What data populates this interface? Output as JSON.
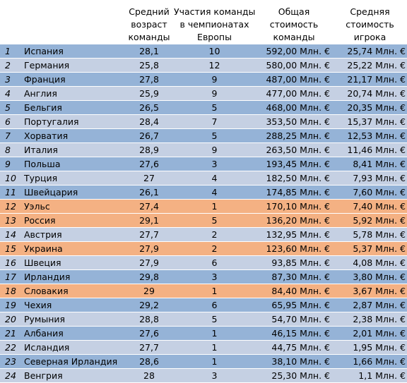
{
  "header": {
    "num": "",
    "country": "",
    "age": [
      "Средний",
      "возраст",
      "команды"
    ],
    "participation": [
      "Участия команды",
      "в чемпионатах",
      "Европы"
    ],
    "total_value": [
      "Общая",
      "стоимость",
      "команды"
    ],
    "avg_value": [
      "Средняя",
      "стоимость",
      "игрока"
    ]
  },
  "colors": {
    "blue": "#95b3d7",
    "light": "#c5d0e3",
    "orange": "#f4b183"
  },
  "rows": [
    {
      "num": "1",
      "country": "Испания",
      "age": "28,1",
      "part": "10",
      "total": "592,00 Млн. €",
      "avg": "25,74 Млн. €",
      "color": "blue"
    },
    {
      "num": "2",
      "country": "Германия",
      "age": "25,8",
      "part": "12",
      "total": "580,00 Млн. €",
      "avg": "25,22 Млн. €",
      "color": "light"
    },
    {
      "num": "3",
      "country": "Франция",
      "age": "27,8",
      "part": "9",
      "total": "487,00 Млн. €",
      "avg": "21,17 Млн. €",
      "color": "blue"
    },
    {
      "num": "4",
      "country": "Англия",
      "age": "25,9",
      "part": "9",
      "total": "477,00 Млн. €",
      "avg": "20,74 Млн. €",
      "color": "light"
    },
    {
      "num": "5",
      "country": "Бельгия",
      "age": "26,5",
      "part": "5",
      "total": "468,00 Млн. €",
      "avg": "20,35 Млн. €",
      "color": "blue"
    },
    {
      "num": "6",
      "country": "Португалия",
      "age": "28,4",
      "part": "7",
      "total": "353,50 Млн. €",
      "avg": "15,37 Млн. €",
      "color": "light"
    },
    {
      "num": "7",
      "country": "Хорватия",
      "age": "26,7",
      "part": "5",
      "total": "288,25 Млн. €",
      "avg": "12,53 Млн. €",
      "color": "blue"
    },
    {
      "num": "8",
      "country": "Италия",
      "age": "28,9",
      "part": "9",
      "total": "263,50 Млн. €",
      "avg": "11,46 Млн. €",
      "color": "light"
    },
    {
      "num": "9",
      "country": "Польша",
      "age": "27,6",
      "part": "3",
      "total": "193,45 Млн. €",
      "avg": "8,41 Млн. €",
      "color": "blue"
    },
    {
      "num": "10",
      "country": "Турция",
      "age": "27",
      "part": "4",
      "total": "182,50 Млн. €",
      "avg": "7,93 Млн. €",
      "color": "light"
    },
    {
      "num": "11",
      "country": "Швейцария",
      "age": "26,1",
      "part": "4",
      "total": "174,85 Млн. €",
      "avg": "7,60 Млн. €",
      "color": "blue"
    },
    {
      "num": "12",
      "country": "Уэльс",
      "age": "27,4",
      "part": "1",
      "total": "170,10 Млн. €",
      "avg": "7,40 Млн. €",
      "color": "orange"
    },
    {
      "num": "13",
      "country": "Россия",
      "age": "29,1",
      "part": "5",
      "total": "136,20 Млн. €",
      "avg": "5,92 Млн. €",
      "color": "orange"
    },
    {
      "num": "14",
      "country": "Австрия",
      "age": "27,7",
      "part": "2",
      "total": "132,95 Млн. €",
      "avg": "5,78 Млн. €",
      "color": "light"
    },
    {
      "num": "15",
      "country": "Украина",
      "age": "27,9",
      "part": "2",
      "total": "123,60 Млн. €",
      "avg": "5,37 Млн. €",
      "color": "orange"
    },
    {
      "num": "16",
      "country": "Швеция",
      "age": "27,9",
      "part": "6",
      "total": "93,85 Млн. €",
      "avg": "4,08 Млн. €",
      "color": "light"
    },
    {
      "num": "17",
      "country": "Ирландия",
      "age": "29,8",
      "part": "3",
      "total": "87,30 Млн. €",
      "avg": "3,80 Млн. €",
      "color": "blue"
    },
    {
      "num": "18",
      "country": "Словакия",
      "age": "29",
      "part": "1",
      "total": "84,40 Млн. €",
      "avg": "3,67 Млн. €",
      "color": "orange"
    },
    {
      "num": "19",
      "country": "Чехия",
      "age": "29,2",
      "part": "6",
      "total": "65,95 Млн. €",
      "avg": "2,87 Млн. €",
      "color": "blue"
    },
    {
      "num": "20",
      "country": "Румыния",
      "age": "28,8",
      "part": "5",
      "total": "54,70 Млн. €",
      "avg": "2,38 Млн. €",
      "color": "light"
    },
    {
      "num": "21",
      "country": "Албания",
      "age": "27,6",
      "part": "1",
      "total": "46,15 Млн. €",
      "avg": "2,01 Млн. €",
      "color": "blue"
    },
    {
      "num": "22",
      "country": "Исландия",
      "age": "27,7",
      "part": "1",
      "total": "44,75 Млн. €",
      "avg": "1,95 Млн. €",
      "color": "light"
    },
    {
      "num": "23",
      "country": "Северная Ирландия",
      "age": "28,6",
      "part": "1",
      "total": "38,10 Млн. €",
      "avg": "1,66 Млн. €",
      "color": "blue"
    },
    {
      "num": "24",
      "country": "Венгрия",
      "age": "28",
      "part": "3",
      "total": "25,30 Млн. €",
      "avg": "1,1 Млн. €",
      "color": "light"
    }
  ]
}
